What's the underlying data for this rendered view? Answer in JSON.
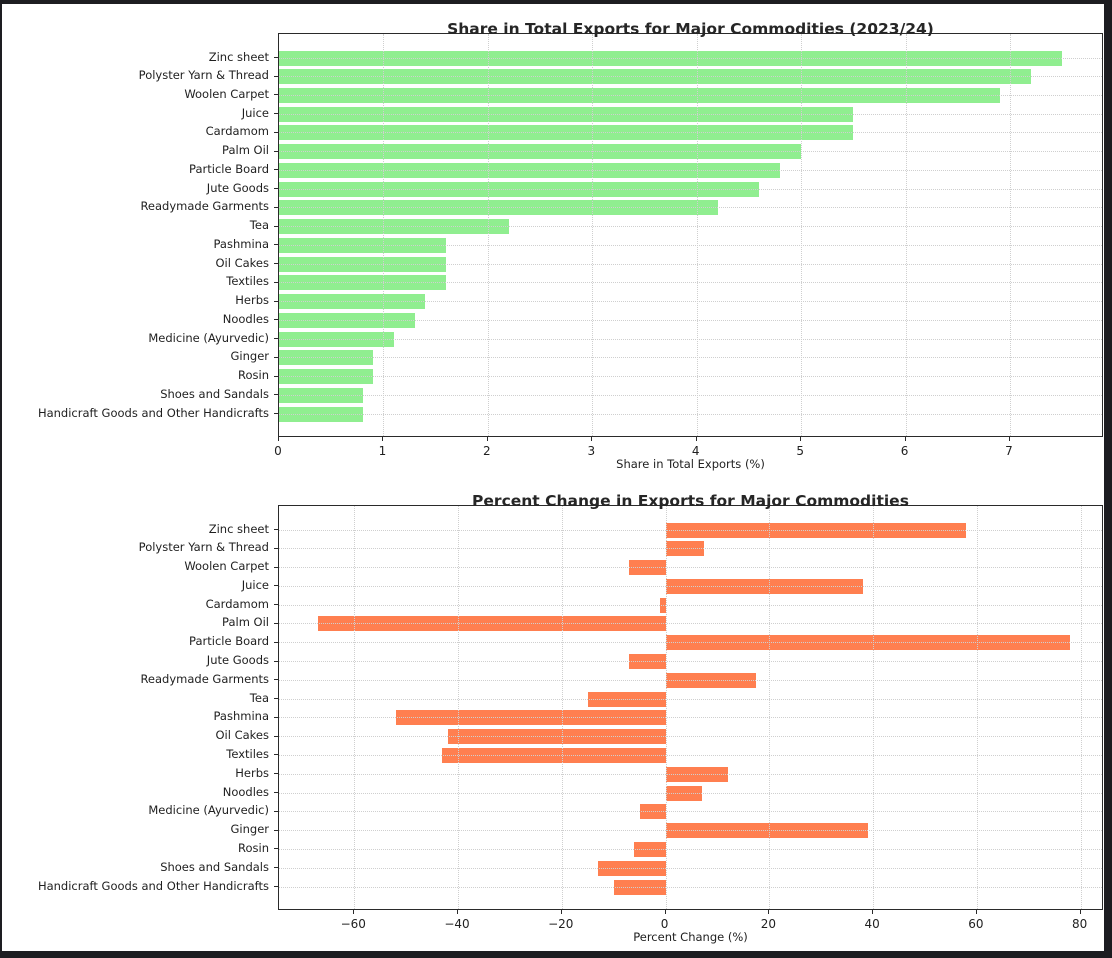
{
  "figure": {
    "background": "#ffffff",
    "frame_color": "#1d1d21",
    "grid_color": "#cfcfcf",
    "axis_color": "#2a2a2a",
    "text_color": "#1f1f1f"
  },
  "chart_data": [
    {
      "type": "bar",
      "orientation": "horizontal",
      "title": "Share in Total Exports for Major Commodities (2023/24)",
      "xlabel": "Share in Total Exports (%)",
      "ylabel": "",
      "bar_color": "#90ee90",
      "grid": true,
      "grid_style": "dotted",
      "xlim": [
        0,
        7.9
      ],
      "xticks": [
        0,
        1,
        2,
        3,
        4,
        5,
        6,
        7
      ],
      "categories": [
        "Zinc sheet",
        "Polyster Yarn & Thread",
        "Woolen Carpet",
        "Juice",
        "Cardamom",
        "Palm Oil",
        "Particle Board",
        "Jute Goods",
        "Readymade Garments",
        "Tea",
        "Pashmina",
        "Oil Cakes",
        "Textiles",
        "Herbs",
        "Noodles",
        "Medicine (Ayurvedic)",
        "Ginger",
        "Rosin",
        "Shoes and Sandals",
        "Handicraft Goods and Other Handicrafts"
      ],
      "values": [
        7.5,
        7.2,
        6.9,
        5.5,
        5.5,
        5.0,
        4.8,
        4.6,
        4.2,
        2.2,
        1.6,
        1.6,
        1.6,
        1.4,
        1.3,
        1.1,
        0.9,
        0.9,
        0.8,
        0.8
      ]
    },
    {
      "type": "bar",
      "orientation": "horizontal",
      "title": "Percent Change in Exports for Major Commodities",
      "xlabel": "Percent Change (%)",
      "ylabel": "",
      "bar_color": "#ff7f50",
      "grid": true,
      "grid_style": "dotted",
      "xlim": [
        -74.5,
        84.5
      ],
      "xticks": [
        -60,
        -40,
        -20,
        0,
        20,
        40,
        60,
        80
      ],
      "categories": [
        "Zinc sheet",
        "Polyster Yarn & Thread",
        "Woolen Carpet",
        "Juice",
        "Cardamom",
        "Palm Oil",
        "Particle Board",
        "Jute Goods",
        "Readymade Garments",
        "Tea",
        "Pashmina",
        "Oil Cakes",
        "Textiles",
        "Herbs",
        "Noodles",
        "Medicine (Ayurvedic)",
        "Ginger",
        "Rosin",
        "Shoes and Sandals",
        "Handicraft Goods and Other Handicrafts"
      ],
      "values": [
        58,
        7.5,
        -7,
        38,
        -1,
        -67,
        78,
        -7,
        17.5,
        -15,
        -52,
        -42,
        -43,
        12,
        7,
        -5,
        39,
        -6,
        -13,
        -10
      ]
    }
  ]
}
